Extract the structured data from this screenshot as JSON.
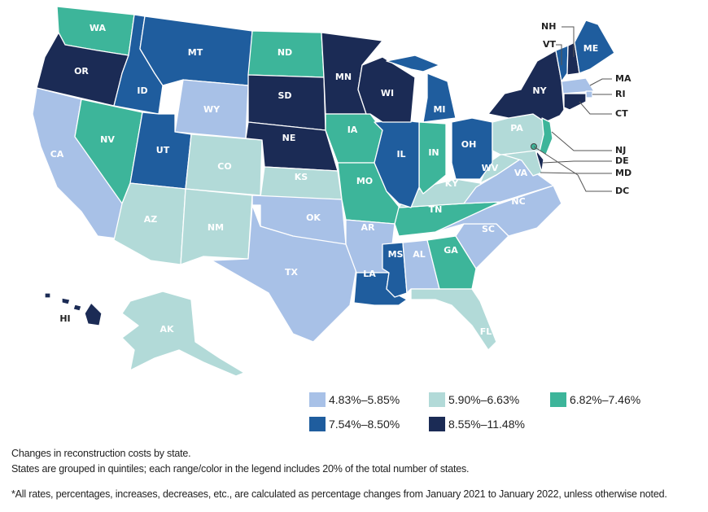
{
  "legend": [
    {
      "range": "4.83%–5.85%",
      "color": "#a8c1e7"
    },
    {
      "range": "5.90%–6.63%",
      "color": "#b2dad8"
    },
    {
      "range": "6.82%–7.46%",
      "color": "#3db59a"
    },
    {
      "range": "7.54%–8.50%",
      "color": "#1f5d9e"
    },
    {
      "range": "8.55%–11.48%",
      "color": "#1b2b55"
    }
  ],
  "states": [
    {
      "abbr": "WA",
      "bin": 2
    },
    {
      "abbr": "OR",
      "bin": 4
    },
    {
      "abbr": "CA",
      "bin": 0
    },
    {
      "abbr": "NV",
      "bin": 2
    },
    {
      "abbr": "ID",
      "bin": 3
    },
    {
      "abbr": "MT",
      "bin": 3
    },
    {
      "abbr": "WY",
      "bin": 0
    },
    {
      "abbr": "UT",
      "bin": 3
    },
    {
      "abbr": "CO",
      "bin": 1
    },
    {
      "abbr": "AZ",
      "bin": 1
    },
    {
      "abbr": "NM",
      "bin": 1
    },
    {
      "abbr": "ND",
      "bin": 2
    },
    {
      "abbr": "SD",
      "bin": 4
    },
    {
      "abbr": "NE",
      "bin": 4
    },
    {
      "abbr": "KS",
      "bin": 1
    },
    {
      "abbr": "OK",
      "bin": 0
    },
    {
      "abbr": "TX",
      "bin": 0
    },
    {
      "abbr": "MN",
      "bin": 4
    },
    {
      "abbr": "IA",
      "bin": 2
    },
    {
      "abbr": "MO",
      "bin": 2
    },
    {
      "abbr": "AR",
      "bin": 0
    },
    {
      "abbr": "LA",
      "bin": 3
    },
    {
      "abbr": "MS",
      "bin": 3
    },
    {
      "abbr": "AL",
      "bin": 0
    },
    {
      "abbr": "GA",
      "bin": 2
    },
    {
      "abbr": "FL",
      "bin": 1
    },
    {
      "abbr": "SC",
      "bin": 0
    },
    {
      "abbr": "NC",
      "bin": 0
    },
    {
      "abbr": "TN",
      "bin": 2
    },
    {
      "abbr": "KY",
      "bin": 1
    },
    {
      "abbr": "VA",
      "bin": 0
    },
    {
      "abbr": "WV",
      "bin": 1
    },
    {
      "abbr": "OH",
      "bin": 3
    },
    {
      "abbr": "IN",
      "bin": 2
    },
    {
      "abbr": "IL",
      "bin": 3
    },
    {
      "abbr": "WI",
      "bin": 4
    },
    {
      "abbr": "MI",
      "bin": 3
    },
    {
      "abbr": "PA",
      "bin": 1
    },
    {
      "abbr": "NY",
      "bin": 4
    },
    {
      "abbr": "VT",
      "bin": 3
    },
    {
      "abbr": "NH",
      "bin": 4
    },
    {
      "abbr": "ME",
      "bin": 3
    },
    {
      "abbr": "MA",
      "bin": 0
    },
    {
      "abbr": "RI",
      "bin": 0
    },
    {
      "abbr": "CT",
      "bin": 4
    },
    {
      "abbr": "NJ",
      "bin": 2
    },
    {
      "abbr": "DE",
      "bin": 4
    },
    {
      "abbr": "MD",
      "bin": 1
    },
    {
      "abbr": "DC",
      "bin": 2
    },
    {
      "abbr": "AK",
      "bin": 1
    },
    {
      "abbr": "HI",
      "bin": 4
    }
  ],
  "notes": {
    "line1": "Changes in reconstruction costs by state.",
    "line2": "States are grouped in quintiles; each range/color in the legend includes 20% of the total number of states.",
    "footnote": "*All rates, percentages, increases, decreases, etc., are calculated as percentage changes from January 2021 to January 2022, unless otherwise noted."
  }
}
